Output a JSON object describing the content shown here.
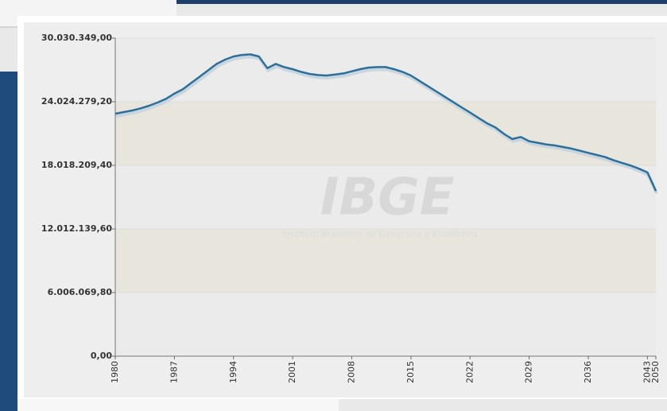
{
  "chart_data": {
    "type": "line",
    "watermark": "IBGE",
    "watermark_subtitle": "Instituto Brasileiro de Geografia e Estatística",
    "categories": [
      "1980",
      null,
      null,
      null,
      null,
      null,
      null,
      "1987",
      null,
      null,
      null,
      null,
      null,
      null,
      "1994",
      null,
      null,
      null,
      null,
      null,
      null,
      "2001",
      null,
      null,
      null,
      null,
      null,
      null,
      "2008",
      null,
      null,
      null,
      null,
      null,
      null,
      "2015",
      null,
      null,
      null,
      null,
      null,
      null,
      "2022",
      null,
      null,
      null,
      null,
      null,
      null,
      "2029",
      null,
      null,
      null,
      null,
      null,
      null,
      "2036",
      null,
      null,
      null,
      null,
      null,
      null,
      "2043",
      "2050"
    ],
    "series": [
      {
        "name": null,
        "color": "#2e6f9a",
        "values": [
          22900000,
          23050000,
          23200000,
          23400000,
          23650000,
          23950000,
          24300000,
          24800000,
          25200000,
          25800000,
          26400000,
          27000000,
          27600000,
          28000000,
          28300000,
          28450000,
          28500000,
          28300000,
          27200000,
          27600000,
          27300000,
          27100000,
          26850000,
          26650000,
          26550000,
          26500000,
          26600000,
          26700000,
          26900000,
          27100000,
          27250000,
          27300000,
          27300000,
          27100000,
          26850000,
          26500000,
          26000000,
          25500000,
          25000000,
          24500000,
          24000000,
          23500000,
          23000000,
          22500000,
          22000000,
          21600000,
          21000000,
          20500000,
          20700000,
          20300000,
          20150000,
          20000000,
          19900000,
          19750000,
          19600000,
          19400000,
          19200000,
          19000000,
          18800000,
          18500000,
          18250000,
          18000000,
          17700000,
          17350000,
          15600000
        ]
      }
    ],
    "ylim": [
      0,
      30030349
    ],
    "yticks": [
      {
        "value": 0,
        "label": "0,00"
      },
      {
        "value": 6006069.8,
        "label": "6.006.069,80"
      },
      {
        "value": 12012139.6,
        "label": "12.012.139,60"
      },
      {
        "value": 18018209.4,
        "label": "18.018.209,40"
      },
      {
        "value": 24024279.2,
        "label": "24.024.279,20"
      },
      {
        "value": 30030349,
        "label": "30.030.349,00"
      }
    ],
    "band_color": "#e8e6dc",
    "plot_color": "#ebebeb"
  }
}
